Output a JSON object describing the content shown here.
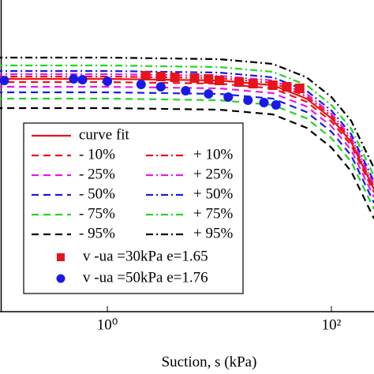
{
  "chart_data": {
    "type": "line",
    "x_label": "Suction, s (kPa)",
    "log_x": true,
    "xlim": [
      0.11,
      240
    ],
    "xticks": [
      {
        "value": 1,
        "label": "10⁰"
      },
      {
        "value": 100,
        "label": "10²"
      }
    ],
    "ylim": [
      0,
      0.79
    ],
    "x": [
      0.1,
      1,
      10,
      30,
      60,
      100,
      150,
      240
    ],
    "series": [
      {
        "name": "curve fit",
        "color": "#e8131b",
        "style": "solid",
        "values": [
          0.59,
          0.59,
          0.586,
          0.574,
          0.54,
          0.49,
          0.43,
          0.31
        ]
      },
      {
        "name": "- 10%",
        "color": "#e8131b",
        "style": "dash",
        "values": [
          0.582,
          0.582,
          0.578,
          0.566,
          0.532,
          0.482,
          0.422,
          0.302
        ]
      },
      {
        "name": "+ 10%",
        "color": "#e8131b",
        "style": "dashdot",
        "values": [
          0.596,
          0.596,
          0.592,
          0.58,
          0.546,
          0.496,
          0.436,
          0.316
        ]
      },
      {
        "name": "- 25%",
        "color": "#e619e6",
        "style": "dash",
        "values": [
          0.57,
          0.57,
          0.566,
          0.554,
          0.52,
          0.47,
          0.41,
          0.29
        ]
      },
      {
        "name": "+ 25%",
        "color": "#e619e6",
        "style": "dashdot",
        "values": [
          0.602,
          0.602,
          0.598,
          0.586,
          0.552,
          0.502,
          0.442,
          0.322
        ]
      },
      {
        "name": "- 50%",
        "color": "#1a1ae6",
        "style": "dash",
        "values": [
          0.556,
          0.556,
          0.552,
          0.54,
          0.506,
          0.456,
          0.396,
          0.276
        ]
      },
      {
        "name": "+ 50%",
        "color": "#1a1ae6",
        "style": "dashdot",
        "values": [
          0.61,
          0.61,
          0.606,
          0.594,
          0.56,
          0.51,
          0.45,
          0.33
        ]
      },
      {
        "name": "- 75%",
        "color": "#22d622",
        "style": "dash",
        "values": [
          0.54,
          0.54,
          0.536,
          0.524,
          0.49,
          0.44,
          0.38,
          0.26
        ]
      },
      {
        "name": "+ 75%",
        "color": "#22d622",
        "style": "dashdot",
        "values": [
          0.624,
          0.624,
          0.62,
          0.608,
          0.574,
          0.524,
          0.464,
          0.344
        ]
      },
      {
        "name": "- 95%",
        "color": "#000000",
        "style": "dash",
        "values": [
          0.516,
          0.516,
          0.512,
          0.5,
          0.466,
          0.416,
          0.356,
          0.236
        ]
      },
      {
        "name": "+ 95%",
        "color": "#000000",
        "style": "dashdot",
        "values": [
          0.644,
          0.644,
          0.64,
          0.628,
          0.594,
          0.544,
          0.484,
          0.364
        ]
      }
    ],
    "scatter": [
      {
        "name": "v -ua =30kPa e=1.65",
        "color": "#e8131b",
        "marker": "square",
        "x": [
          2.2,
          3,
          4,
          6,
          8,
          10,
          15,
          20,
          30,
          40,
          52
        ],
        "values": [
          0.598,
          0.596,
          0.594,
          0.592,
          0.59,
          0.586,
          0.582,
          0.578,
          0.574,
          0.57,
          0.566
        ]
      },
      {
        "name": "v -ua =50kPa e=1.76",
        "color": "#1a1ae6",
        "marker": "circle",
        "x": [
          0.12,
          0.5,
          0.6,
          1,
          2,
          3,
          5,
          8,
          12,
          18,
          25,
          32
        ],
        "values": [
          0.586,
          0.59,
          0.588,
          0.584,
          0.576,
          0.57,
          0.56,
          0.552,
          0.544,
          0.536,
          0.53,
          0.524
        ]
      }
    ]
  }
}
